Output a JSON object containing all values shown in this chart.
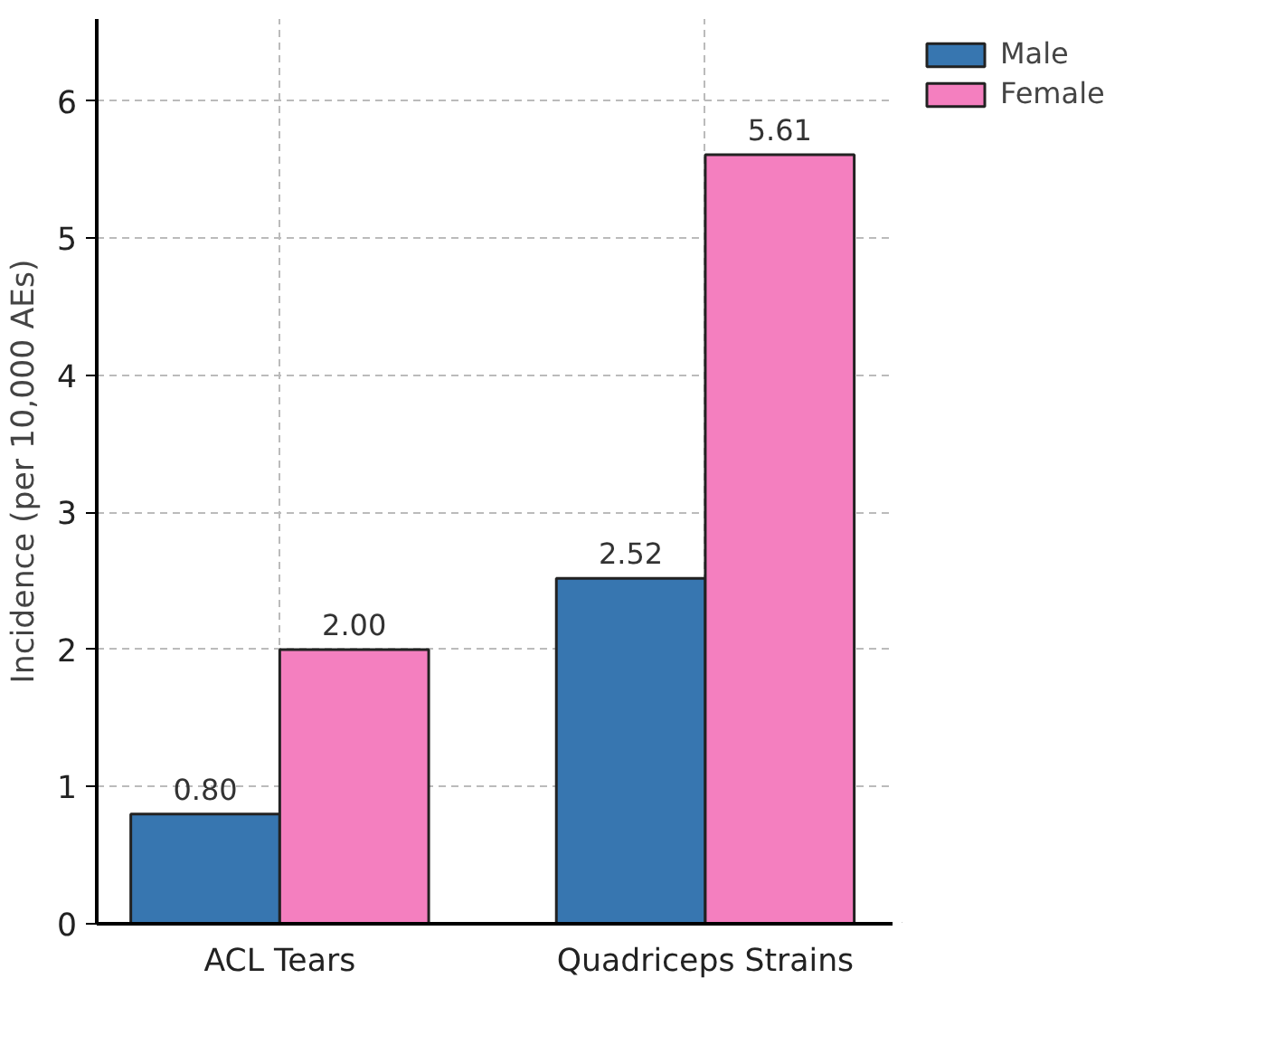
{
  "chart_data": {
    "type": "bar",
    "ylabel": "Incidence (per 10,000 AEs)",
    "categories": [
      "ACL Tears",
      "Quadriceps Strains"
    ],
    "series": [
      {
        "name": "Male",
        "color": "#3776b0",
        "values": [
          0.8,
          2.52
        ],
        "value_labels": [
          "0.80",
          "2.52"
        ]
      },
      {
        "name": "Female",
        "color": "#f47fbf",
        "values": [
          2.0,
          5.61
        ],
        "value_labels": [
          "2.00",
          "5.61"
        ]
      }
    ],
    "ylim": [
      0,
      6.6
    ],
    "yticks": [
      0,
      1,
      2,
      3,
      4,
      5,
      6
    ],
    "grid": true,
    "legend": "top right"
  }
}
